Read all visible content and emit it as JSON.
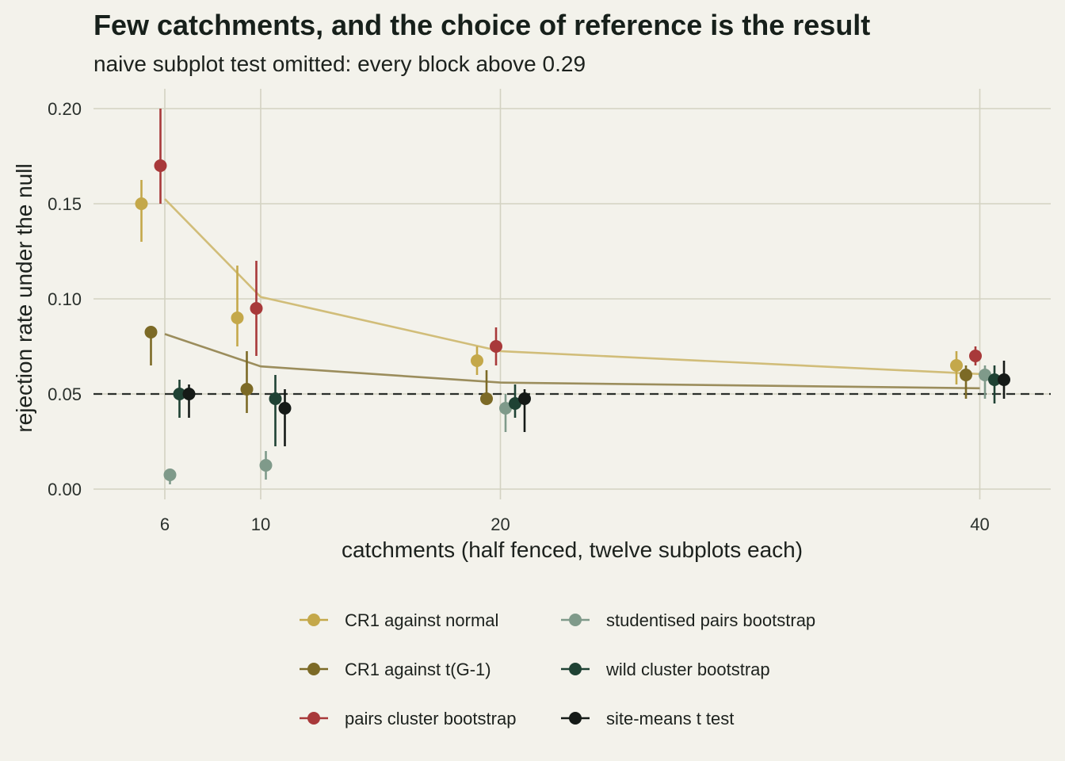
{
  "chart_data": {
    "type": "scatter",
    "title": "Few catchments, and the choice of reference is the result",
    "subtitle": "naive subplot test omitted: every block above 0.29",
    "xlabel": "catchments (half fenced, twelve subplots each)",
    "ylabel": "rejection rate under the null",
    "x_ticks": [
      6,
      10,
      20,
      40
    ],
    "y_ticks": [
      "0.00",
      "0.05",
      "0.10",
      "0.15",
      "0.20"
    ],
    "ylim": [
      0,
      0.2
    ],
    "reference_line": 0.05,
    "grid": true,
    "legend_position": "bottom",
    "series": [
      {
        "name": "CR1 against normal",
        "color": "#c4a84a",
        "points": [
          {
            "x": 6,
            "y": 0.15,
            "lo": 0.13,
            "hi": 0.1625
          },
          {
            "x": 10,
            "y": 0.09,
            "lo": 0.075,
            "hi": 0.1175
          },
          {
            "x": 20,
            "y": 0.0675,
            "lo": 0.06,
            "hi": 0.075
          },
          {
            "x": 40,
            "y": 0.065,
            "lo": 0.055,
            "hi": 0.0725
          }
        ]
      },
      {
        "name": "CR1 against t(G-1)",
        "color": "#7c6a26",
        "points": [
          {
            "x": 6,
            "y": 0.0825,
            "lo": 0.065,
            "hi": 0.085
          },
          {
            "x": 10,
            "y": 0.0525,
            "lo": 0.04,
            "hi": 0.0725
          },
          {
            "x": 20,
            "y": 0.0475,
            "lo": 0.0475,
            "hi": 0.0625
          },
          {
            "x": 40,
            "y": 0.06,
            "lo": 0.0475,
            "hi": 0.065
          }
        ]
      },
      {
        "name": "pairs cluster bootstrap",
        "color": "#a8393a",
        "points": [
          {
            "x": 6,
            "y": 0.17,
            "lo": 0.15,
            "hi": 0.2
          },
          {
            "x": 10,
            "y": 0.095,
            "lo": 0.07,
            "hi": 0.12
          },
          {
            "x": 20,
            "y": 0.075,
            "lo": 0.065,
            "hi": 0.085
          },
          {
            "x": 40,
            "y": 0.07,
            "lo": 0.065,
            "hi": 0.075
          }
        ]
      },
      {
        "name": "studentised pairs bootstrap",
        "color": "#7f9a8a",
        "points": [
          {
            "x": 6,
            "y": 0.0075,
            "lo": 0.0025,
            "hi": 0.01
          },
          {
            "x": 10,
            "y": 0.0125,
            "lo": 0.005,
            "hi": 0.02
          },
          {
            "x": 20,
            "y": 0.0425,
            "lo": 0.03,
            "hi": 0.05
          },
          {
            "x": 40,
            "y": 0.06,
            "lo": 0.0475,
            "hi": 0.065
          }
        ]
      },
      {
        "name": "wild cluster bootstrap",
        "color": "#1f4234",
        "points": [
          {
            "x": 6,
            "y": 0.05,
            "lo": 0.0375,
            "hi": 0.0575
          },
          {
            "x": 10,
            "y": 0.0475,
            "lo": 0.0225,
            "hi": 0.06
          },
          {
            "x": 20,
            "y": 0.045,
            "lo": 0.0375,
            "hi": 0.055
          },
          {
            "x": 40,
            "y": 0.0575,
            "lo": 0.045,
            "hi": 0.065
          }
        ]
      },
      {
        "name": "site-means t test",
        "color": "#151a17",
        "points": [
          {
            "x": 6,
            "y": 0.05,
            "lo": 0.0375,
            "hi": 0.055
          },
          {
            "x": 10,
            "y": 0.0425,
            "lo": 0.0225,
            "hi": 0.0525
          },
          {
            "x": 20,
            "y": 0.0475,
            "lo": 0.03,
            "hi": 0.0525
          },
          {
            "x": 40,
            "y": 0.0575,
            "lo": 0.0475,
            "hi": 0.0675
          }
        ]
      }
    ],
    "reference_curves": [
      {
        "color": "#d1bd79",
        "x": [
          6,
          10,
          20,
          40
        ],
        "y": [
          0.1525,
          0.101,
          0.0725,
          0.0605
        ]
      },
      {
        "color": "#9b8d5c",
        "x": [
          6,
          10,
          20,
          40
        ],
        "y": [
          0.0815,
          0.0645,
          0.056,
          0.053
        ]
      }
    ]
  }
}
